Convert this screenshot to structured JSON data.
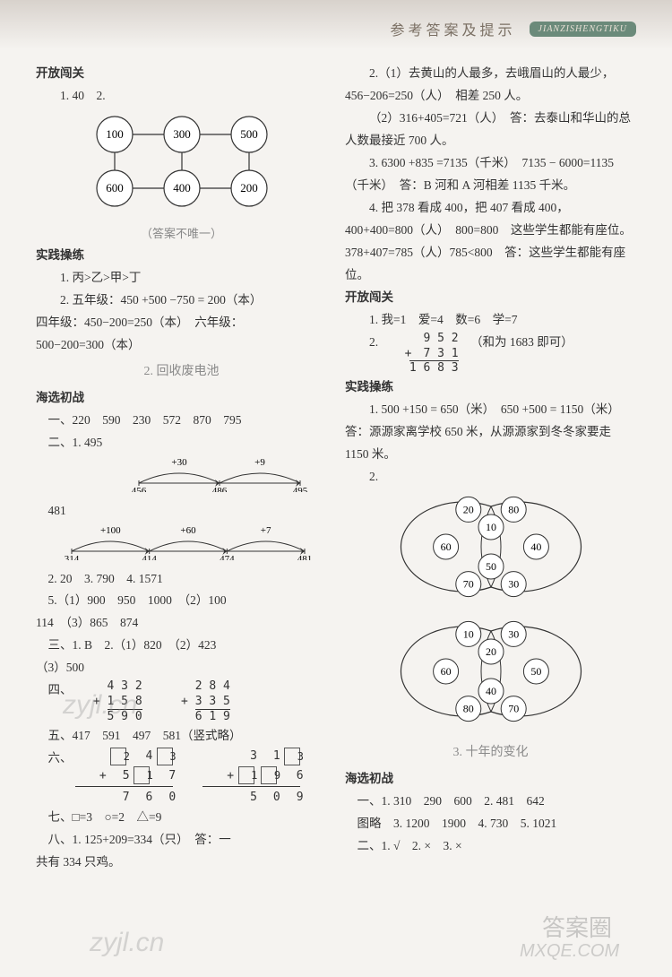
{
  "header": {
    "title": "参考答案及提示",
    "pinyin": "JIANZISHENGTIKU"
  },
  "watermarks": {
    "w1": "zyjl.cn",
    "w2": "zyjl.cn",
    "w3": "答案圈",
    "w4": "MXQE.COM"
  },
  "left": {
    "kfcg": "开放闯关",
    "kfcg_1": "1. 40　2.",
    "diagram1": {
      "nodes": [
        "100",
        "300",
        "500",
        "600",
        "400",
        "200"
      ],
      "note": "（答案不唯一）",
      "node_r": 20,
      "stroke": "#333333",
      "fill": "#ffffff",
      "font_size": 13
    },
    "sjcl": "实践操练",
    "sjcl_1": "1. 丙>乙>甲>丁",
    "sjcl_2": "2. 五年级：450 +500 −750 = 200（本）",
    "sjcl_3": "四年级：450−200=250（本）　六年级：",
    "sjcl_4": "500−200=300（本）",
    "sub2": "2. 回收废电池",
    "hxcz": "海选初战",
    "hx_1": "一、220　590　230　572　870　795",
    "hx_2a": "二、1. 495",
    "numline1": {
      "start": 456,
      "mids": [
        486
      ],
      "end": 495,
      "labels": [
        "+30",
        "+9"
      ],
      "stroke": "#333333"
    },
    "hx_2b": "481",
    "numline2": {
      "start": 314,
      "mids": [
        414,
        474
      ],
      "end": 481,
      "labels": [
        "+100",
        "+60",
        "+7"
      ],
      "stroke": "#333333"
    },
    "hx_3": "2. 20　3. 790　4. 1571",
    "hx_4": "5.（1）900　950　1000　（2）100",
    "hx_5": "114　（3）865　874",
    "hx_6": "三、1. B　2.（1）820　（2）423",
    "hx_7": "（3）500",
    "hx_8": "四、",
    "add1": {
      "a": "4 3 2",
      "b": "+ 1 5 8",
      "s": "5 9 0"
    },
    "add2": {
      "a": "2 8 4",
      "b": "+ 3 3 5",
      "s": "6 1 9"
    },
    "hx_9": "五、417　591　497　581（竖式略）",
    "hx_10": "六、",
    "puzzle1": {
      "row1": [
        "[2]",
        "4",
        "[3]"
      ],
      "row2": [
        "+",
        "5",
        "[1]",
        "7"
      ],
      "row3": [
        "7",
        "6",
        "0"
      ]
    },
    "puzzle2": {
      "row1": [
        "3",
        "1",
        "[3]"
      ],
      "row2": [
        "+",
        "[1]",
        "[9]",
        "6"
      ],
      "row3": [
        "5",
        "0",
        "9"
      ]
    },
    "hx_11": "七、□=3　○=2　△=9",
    "hx_12": "八、1. 125+209=334（只）　答：一",
    "hx_13": "共有 334 只鸡。"
  },
  "right": {
    "p1": "2.（1）去黄山的人最多，去峨眉山的人最少，456−206=250（人）　相差 250 人。",
    "p2": "（2）316+405=721（人）　答：去泰山和华山的总人数最接近 700 人。",
    "p3": "3. 6300 +835 =7135（千米）　7135 − 6000=1135（千米）　答：B 河和 A 河相差 1135 千米。",
    "p4": "4. 把 378 看成 400，把 407 看成 400，400+400=800（人）　800=800　这些学生都能有座位。　378+407=785（人）785<800　答：这些学生都能有座位。",
    "kfcg": "开放闯关",
    "kf_1": "1. 我=1　爱=4　数=6　学=7",
    "kf_2": "2.",
    "kf_add": {
      "a": "9 5 2",
      "b": "+　7 3 1",
      "s": "1 6 8 3",
      "note": "（和为 1683 即可）"
    },
    "sjcl": "实践操练",
    "sj_1": "1. 500 +150 = 650（米）　650 +500 = 1150（米）　答：源源家离学校 650 米，从源源家到冬冬家要走 1150 米。",
    "sj_2": "2.",
    "ring1": {
      "outer": [
        "20",
        "80",
        "40",
        "30",
        "70",
        "60"
      ],
      "inner": [
        "10",
        "50"
      ],
      "stroke": "#333333",
      "fill": "#ffffff",
      "node_r": 14,
      "font_size": 12
    },
    "ring2": {
      "outer": [
        "10",
        "30",
        "50",
        "70",
        "80",
        "60"
      ],
      "inner": [
        "20",
        "40"
      ],
      "stroke": "#333333",
      "fill": "#ffffff",
      "node_r": 14,
      "font_size": 12
    },
    "sub3": "3. 十年的变化",
    "hxcz": "海选初战",
    "hx_1": "一、1. 310　290　600　2. 481　642",
    "hx_2": "图略　3. 1200　1900　4. 730　5. 1021",
    "hx_3": "二、1. √　2. ×　3. ×"
  }
}
